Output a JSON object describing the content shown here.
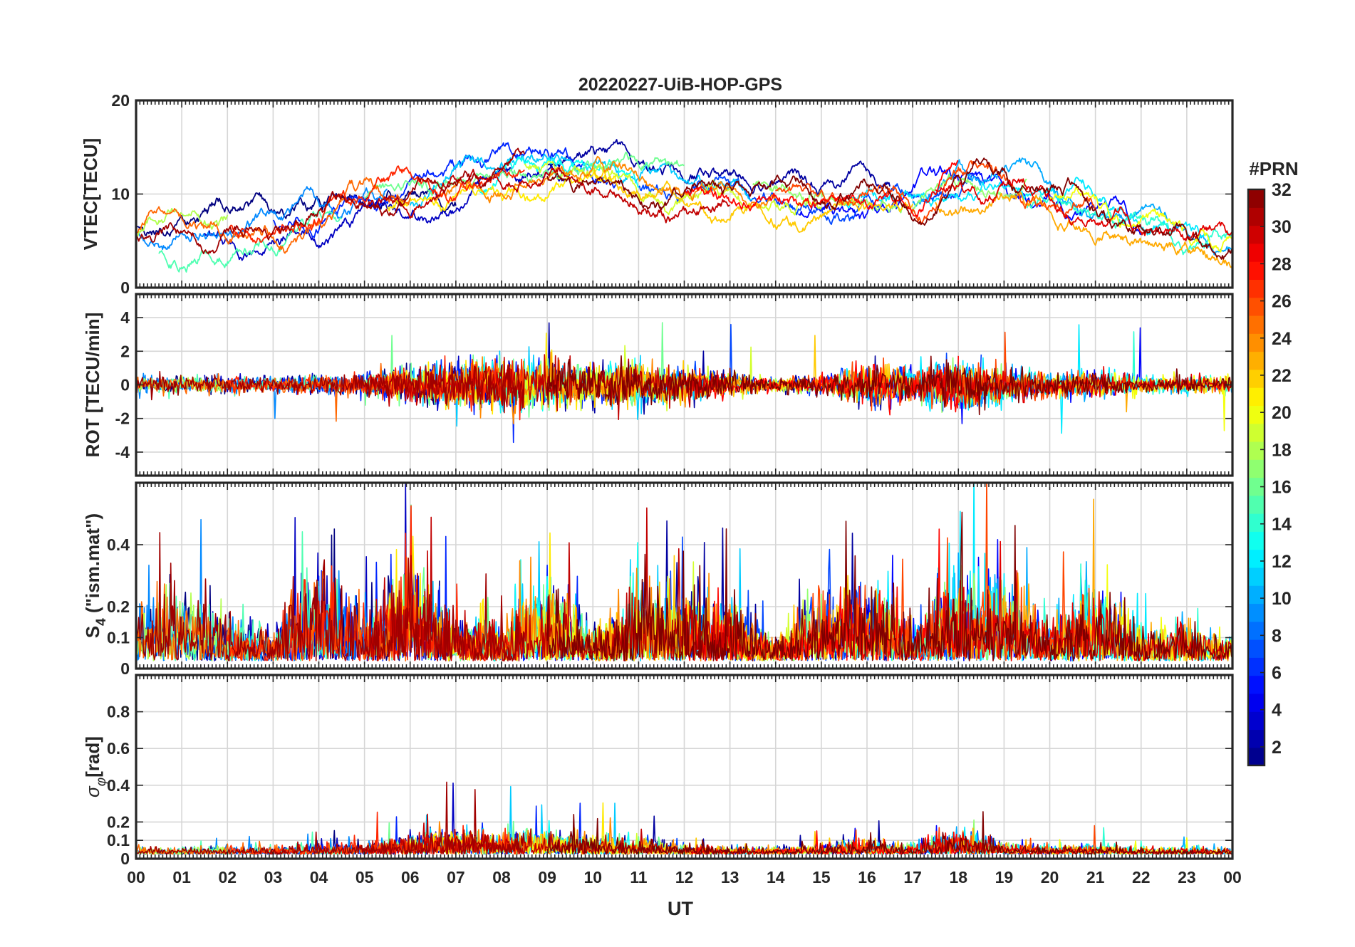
{
  "chart_data": {
    "type": "line",
    "title": "20220227-UiB-HOP-GPS",
    "xlabel": "UT",
    "x_ticks": [
      "00",
      "01",
      "02",
      "03",
      "04",
      "05",
      "06",
      "07",
      "08",
      "09",
      "10",
      "11",
      "12",
      "13",
      "14",
      "15",
      "16",
      "17",
      "18",
      "19",
      "20",
      "21",
      "22",
      "23",
      "00"
    ],
    "xlim": [
      0,
      24
    ],
    "colorbar": {
      "label": "#PRN",
      "range": [
        1,
        32
      ],
      "ticks": [
        "2",
        "4",
        "6",
        "8",
        "10",
        "12",
        "14",
        "16",
        "18",
        "20",
        "22",
        "24",
        "26",
        "28",
        "30",
        "32"
      ],
      "colormap": "jet"
    },
    "panels": [
      {
        "key": "vtec",
        "ylabel": "VTEC[TECU]",
        "ylim": [
          0,
          20
        ],
        "ytick_values": [
          0,
          10,
          20
        ],
        "ytick_labels": [
          "0",
          "10",
          "20"
        ],
        "grid": true,
        "envelope": {
          "hours": [
            0,
            1,
            2,
            3,
            4,
            5,
            6,
            7,
            8,
            9,
            10,
            11,
            12,
            13,
            14,
            15,
            16,
            17,
            18,
            19,
            20,
            21,
            22,
            23,
            24
          ],
          "base": [
            5.2,
            5.6,
            6.3,
            6.6,
            7.2,
            8.6,
            9.6,
            10.6,
            11.8,
            12.6,
            12.6,
            11.2,
            10.2,
            9.6,
            9.2,
            8.6,
            8.6,
            8.6,
            10.6,
            10.6,
            9.6,
            8.6,
            6.6,
            5.2,
            4.4
          ]
        },
        "noise": 1.9
      },
      {
        "key": "rot",
        "ylabel": "ROT [TECU/min]",
        "ylim": [
          -5.4,
          5.4
        ],
        "ytick_values": [
          -4,
          -2,
          0,
          2,
          4
        ],
        "ytick_labels": [
          "-4",
          "-2",
          "0",
          "2",
          "4"
        ],
        "grid": true,
        "envelope": {
          "hours": [
            0,
            1,
            2,
            3,
            4,
            5,
            6,
            7,
            8,
            9,
            10,
            11,
            12,
            13,
            14,
            15,
            16,
            17,
            18,
            19,
            20,
            21,
            22,
            23,
            24
          ],
          "base": [
            0.35,
            0.35,
            0.3,
            0.3,
            0.35,
            0.45,
            0.7,
            0.85,
            1.1,
            0.9,
            0.8,
            0.8,
            0.7,
            0.45,
            0.25,
            0.35,
            0.8,
            0.7,
            1.0,
            0.7,
            0.45,
            0.45,
            0.35,
            0.3,
            0.3
          ]
        }
      },
      {
        "key": "s4",
        "ylabel": "S4 (\"ism.mat\")",
        "ylabel_main": "S",
        "ylabel_sub": "4",
        "ylabel_rest": " (\"ism.mat\")",
        "ylim": [
          0,
          0.6
        ],
        "ytick_values": [
          0,
          0.1,
          0.2,
          0.4
        ],
        "ytick_labels": [
          "0",
          "0.1",
          "0.2",
          "0.4"
        ],
        "grid": true,
        "envelope": {
          "hours": [
            0,
            1,
            2,
            3,
            4,
            5,
            6,
            7,
            8,
            9,
            10,
            11,
            12,
            13,
            14,
            15,
            16,
            17,
            18,
            19,
            20,
            21,
            22,
            23,
            24
          ],
          "base": [
            0.14,
            0.2,
            0.12,
            0.08,
            0.28,
            0.12,
            0.26,
            0.12,
            0.1,
            0.22,
            0.08,
            0.18,
            0.2,
            0.16,
            0.06,
            0.18,
            0.22,
            0.1,
            0.24,
            0.22,
            0.1,
            0.2,
            0.08,
            0.1,
            0.06
          ]
        }
      },
      {
        "key": "sigphi",
        "ylabel": "σφ[rad]",
        "ylabel_sigma": "σ",
        "ylabel_sub": "φ",
        "ylabel_rest": "[rad]",
        "ylim": [
          0,
          1
        ],
        "ytick_values": [
          0,
          0.1,
          0.2,
          0.4,
          0.6,
          0.8
        ],
        "ytick_labels": [
          "0",
          "0.1",
          "0.2",
          "0.4",
          "0.6",
          "0.8"
        ],
        "grid": true,
        "envelope": {
          "hours": [
            0,
            1,
            2,
            3,
            4,
            5,
            6,
            7,
            8,
            9,
            10,
            11,
            12,
            13,
            14,
            15,
            16,
            17,
            18,
            19,
            20,
            21,
            22,
            23,
            24
          ],
          "base": [
            0.04,
            0.04,
            0.05,
            0.04,
            0.06,
            0.07,
            0.12,
            0.16,
            0.13,
            0.14,
            0.1,
            0.1,
            0.06,
            0.04,
            0.04,
            0.06,
            0.09,
            0.06,
            0.14,
            0.07,
            0.05,
            0.06,
            0.04,
            0.04,
            0.04
          ]
        }
      }
    ],
    "series": [
      {
        "name": "PRN 1",
        "prn": 1,
        "start": 0.0,
        "end": 7.0
      },
      {
        "name": "PRN 2",
        "prn": 2,
        "start": 9.0,
        "end": 16.5
      },
      {
        "name": "PRN 3",
        "prn": 3,
        "start": 1.5,
        "end": 9.5
      },
      {
        "name": "PRN 5",
        "prn": 5,
        "start": 14.5,
        "end": 22.0
      },
      {
        "name": "PRN 6",
        "prn": 6,
        "start": 3.0,
        "end": 10.5
      },
      {
        "name": "PRN 7",
        "prn": 7,
        "start": 11.0,
        "end": 18.5
      },
      {
        "name": "PRN 9",
        "prn": 9,
        "start": 0.0,
        "end": 5.5
      },
      {
        "name": "PRN 10",
        "prn": 10,
        "start": 17.0,
        "end": 24.0
      },
      {
        "name": "PRN 11",
        "prn": 11,
        "start": 6.0,
        "end": 13.5
      },
      {
        "name": "PRN 12",
        "prn": 12,
        "start": 15.5,
        "end": 23.5
      },
      {
        "name": "PRN 13",
        "prn": 13,
        "start": 7.5,
        "end": 11.0
      },
      {
        "name": "PRN 14",
        "prn": 14,
        "start": 19.5,
        "end": 24.0
      },
      {
        "name": "PRN 15",
        "prn": 15,
        "start": 0.5,
        "end": 4.5
      },
      {
        "name": "PRN 16",
        "prn": 16,
        "start": 5.0,
        "end": 12.0
      },
      {
        "name": "PRN 17",
        "prn": 17,
        "start": 13.5,
        "end": 19.5
      },
      {
        "name": "PRN 18",
        "prn": 18,
        "start": 0.0,
        "end": 2.0
      },
      {
        "name": "PRN 19",
        "prn": 19,
        "start": 8.5,
        "end": 15.0
      },
      {
        "name": "PRN 20",
        "prn": 20,
        "start": 20.0,
        "end": 24.0
      },
      {
        "name": "PRN 21",
        "prn": 21,
        "start": 5.5,
        "end": 10.5
      },
      {
        "name": "PRN 22",
        "prn": 22,
        "start": 10.0,
        "end": 17.0
      },
      {
        "name": "PRN 23",
        "prn": 23,
        "start": 17.5,
        "end": 24.0
      },
      {
        "name": "PRN 24",
        "prn": 24,
        "start": 6.5,
        "end": 14.0
      },
      {
        "name": "PRN 25",
        "prn": 25,
        "start": 0.0,
        "end": 6.0
      },
      {
        "name": "PRN 26",
        "prn": 26,
        "start": 14.0,
        "end": 21.0
      },
      {
        "name": "PRN 27",
        "prn": 27,
        "start": 2.0,
        "end": 8.5
      },
      {
        "name": "PRN 28",
        "prn": 28,
        "start": 12.0,
        "end": 18.0
      },
      {
        "name": "PRN 29",
        "prn": 29,
        "start": 17.5,
        "end": 24.0
      },
      {
        "name": "PRN 30",
        "prn": 30,
        "start": 5.0,
        "end": 13.0
      },
      {
        "name": "PRN 31",
        "prn": 31,
        "start": 0.0,
        "end": 8.5
      },
      {
        "name": "PRN 32",
        "prn": 32,
        "start": 9.0,
        "end": 24.0
      }
    ]
  }
}
